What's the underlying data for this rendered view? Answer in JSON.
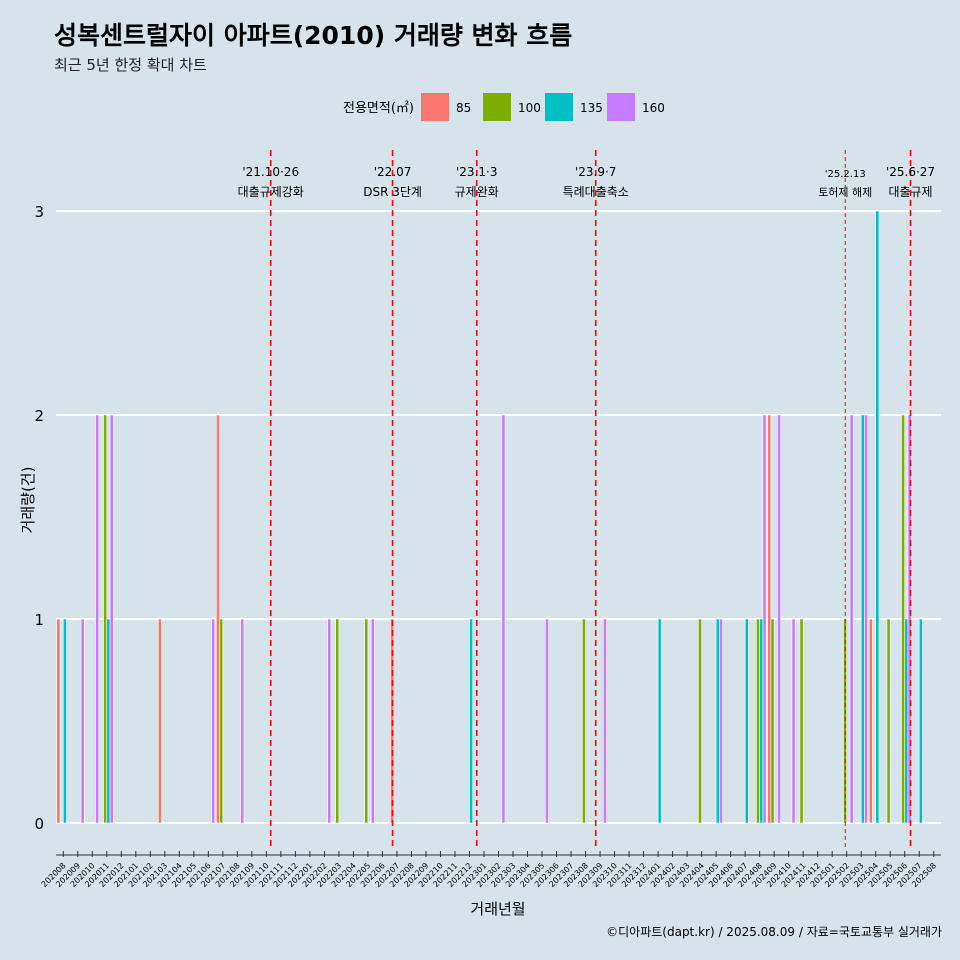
{
  "colors": {
    "background": "#d6e3ea",
    "grid": "#ffffff",
    "event_line": "#ff0000",
    "series": [
      "#f8766d",
      "#7cae00",
      "#00bfc4",
      "#c77cff"
    ]
  },
  "chart_data": {
    "type": "bar",
    "title": "성복센트럴자이 아파트(2010) 거래량 변화 흐름",
    "subtitle": "최근 5년 한정 확대 차트",
    "xlabel": "거래년월",
    "ylabel": "거래량(건)",
    "caption": "©디아파트(dapt.kr) / 2025.08.09 / 자료=국토교통부 실거래가",
    "legend_title": "전용면적(㎡)",
    "legend_position": "top",
    "ylim": [
      0,
      3
    ],
    "yticks": [
      0,
      1,
      2,
      3
    ],
    "grid": true,
    "categories": [
      "202008",
      "202009",
      "202010",
      "202011",
      "202012",
      "202101",
      "202102",
      "202103",
      "202104",
      "202105",
      "202106",
      "202107",
      "202108",
      "202109",
      "202110",
      "202111",
      "202112",
      "202201",
      "202202",
      "202203",
      "202204",
      "202205",
      "202206",
      "202207",
      "202208",
      "202209",
      "202210",
      "202211",
      "202212",
      "202301",
      "202302",
      "202303",
      "202304",
      "202305",
      "202306",
      "202307",
      "202308",
      "202309",
      "202310",
      "202311",
      "202312",
      "202401",
      "202402",
      "202403",
      "202404",
      "202405",
      "202406",
      "202407",
      "202408",
      "202409",
      "202410",
      "202411",
      "202412",
      "202501",
      "202502",
      "202503",
      "202504",
      "202505",
      "202506",
      "202507",
      "202508"
    ],
    "series": [
      {
        "name": "85",
        "values": {
          "202008": 1,
          "202103": 1,
          "202107": 2,
          "202207": 1,
          "202409": 2,
          "202504": 1
        }
      },
      {
        "name": "100",
        "values": {
          "202011": 2,
          "202107": 1,
          "202203": 1,
          "202205": 1,
          "202308": 1,
          "202404": 1,
          "202408": 1,
          "202409": 1,
          "202411": 1,
          "202502": 1,
          "202505": 1,
          "202506": 2
        }
      },
      {
        "name": "135",
        "values": {
          "202008": 1,
          "202011": 1,
          "202212": 1,
          "202401": 1,
          "202405": 1,
          "202407": 1,
          "202408": 1,
          "202503": 2,
          "202504": 3,
          "202506": 1,
          "202507": 1
        }
      },
      {
        "name": "160",
        "values": {
          "202009": 1,
          "202010": 2,
          "202011": 2,
          "202106": 1,
          "202108": 1,
          "202202": 1,
          "202205": 1,
          "202302": 2,
          "202305": 1,
          "202309": 1,
          "202405": 1,
          "202408": 2,
          "202409": 2,
          "202410": 1,
          "202502": 2,
          "202503": 2,
          "202506": 2
        }
      }
    ],
    "events": [
      {
        "date": "202110",
        "offset": 0.8,
        "line1": "'21.10·26",
        "line2": "대출규제강화",
        "dashed": true
      },
      {
        "date": "202207",
        "offset": 0.2,
        "line1": "'22.07",
        "line2": "DSR 3단계",
        "dashed": true
      },
      {
        "date": "202301",
        "offset": 0.0,
        "line1": "'23.1·3",
        "line2": "규제완화",
        "dashed": true
      },
      {
        "date": "202309",
        "offset": 0.2,
        "line1": "'23.9·7",
        "line2": "특례대출축소",
        "dashed": true
      },
      {
        "date": "202502",
        "offset": 0.4,
        "line1": "'25.2.13",
        "line2": "토허제 해제",
        "dashed": false
      },
      {
        "date": "202506",
        "offset": 0.9,
        "line1": "'25.6·27",
        "line2": "대출규제",
        "dashed": true
      }
    ]
  }
}
